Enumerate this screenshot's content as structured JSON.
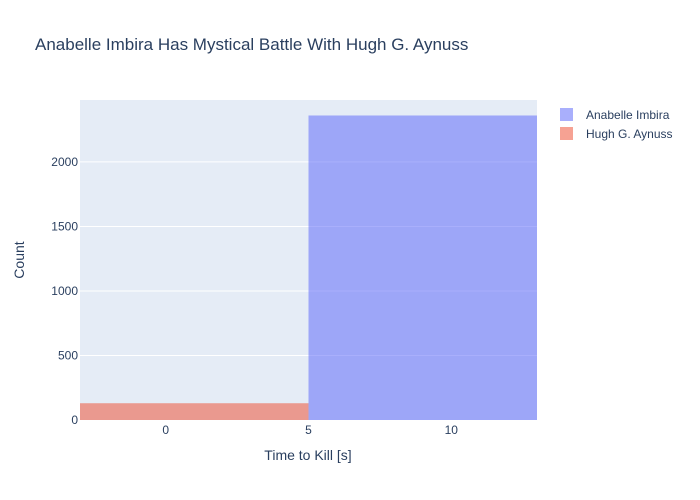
{
  "chart_data": {
    "type": "bar",
    "title": "Anabelle Imbira Has Mystical Battle With Hugh G. Aynuss",
    "xlabel": "Time to Kill [s]",
    "ylabel": "Count",
    "xlim": [
      -3,
      13
    ],
    "ylim": [
      0,
      2480
    ],
    "xticks": [
      0,
      5,
      10
    ],
    "xtick_labels": [
      "0",
      "5",
      "10"
    ],
    "yticks": [
      0,
      500,
      1000,
      1500,
      2000
    ],
    "ytick_labels": [
      "0",
      "500",
      "1000",
      "1500",
      "2000"
    ],
    "grid": true,
    "legend_position": "top-right",
    "series": [
      {
        "name": "Anabelle Imbira",
        "color": "#636efa",
        "opacity": 0.55,
        "bins": [
          {
            "x0": 5,
            "x1": 13,
            "value": 2360
          }
        ]
      },
      {
        "name": "Hugh G. Aynuss",
        "color": "#ef553b",
        "opacity": 0.55,
        "bins": [
          {
            "x0": -3,
            "x1": 5,
            "value": 130
          }
        ]
      }
    ],
    "plot_background": "#e5ecf6",
    "gridline_color": "#ffffff",
    "text_color": "#2a3f5f"
  }
}
